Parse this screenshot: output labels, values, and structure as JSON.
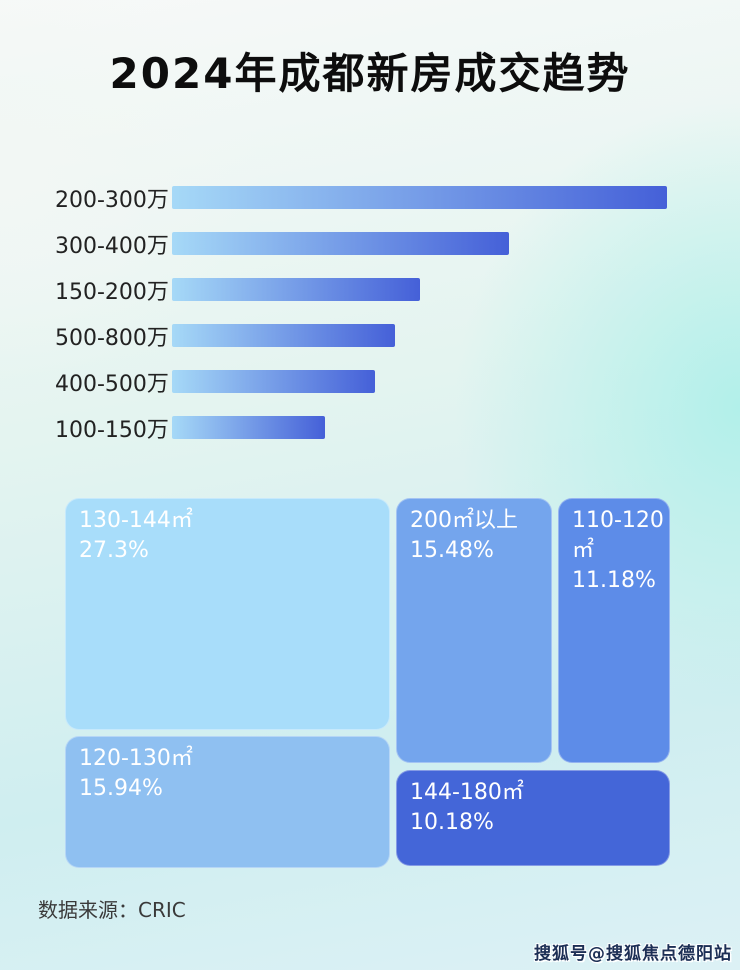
{
  "title": "2024年成都新房成交趋势",
  "footer": {
    "source_label": "数据来源：CRIC"
  },
  "watermark": "搜狐号@搜狐焦点德阳站",
  "colors": {
    "bar_gradient_start": "#a6d9f7",
    "bar_gradient_end": "#4560d8",
    "title_color": "#0d0d0d",
    "bar_label_color": "#222222",
    "treemap_text_color": "#ffffff"
  },
  "chart_data": [
    {
      "type": "bar",
      "orientation": "horizontal",
      "title": "2024年成都新房成交趋势",
      "categories": [
        "200-300万",
        "300-400万",
        "150-200万",
        "500-800万",
        "400-500万",
        "100-150万"
      ],
      "values_relative_length_pct": [
        100,
        68,
        50,
        45,
        41,
        31
      ],
      "value_labels_shown": false,
      "xlabel": "",
      "ylabel": "",
      "grid": false,
      "legend": false
    },
    {
      "type": "treemap",
      "items": [
        {
          "label": "130-144㎡",
          "value_pct": 27.3,
          "display": "27.3%",
          "color": "#a8ddfa"
        },
        {
          "label": "120-130㎡",
          "value_pct": 15.94,
          "display": "15.94%",
          "color": "#8fc0f1"
        },
        {
          "label": "200㎡以上",
          "value_pct": 15.48,
          "display": "15.48%",
          "color": "#74a5ed"
        },
        {
          "label": "110-120㎡",
          "value_pct": 11.18,
          "display": "11.18%",
          "color": "#5d8ce8"
        },
        {
          "label": "144-180㎡",
          "value_pct": 10.18,
          "display": "10.18%",
          "color": "#4466d8"
        }
      ]
    }
  ]
}
